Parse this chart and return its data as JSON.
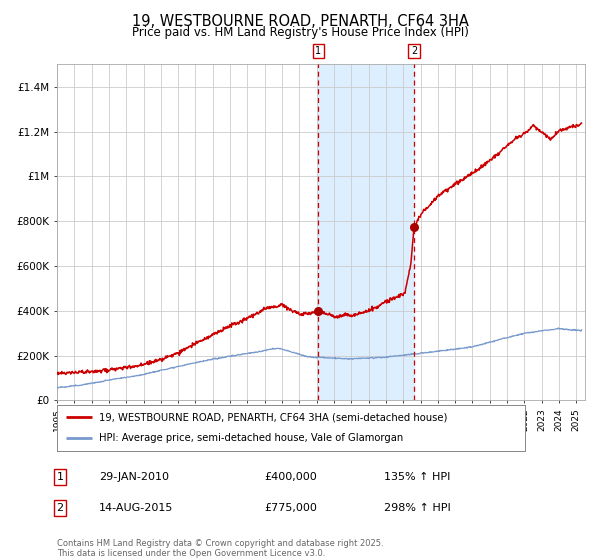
{
  "title": "19, WESTBOURNE ROAD, PENARTH, CF64 3HA",
  "subtitle": "Price paid vs. HM Land Registry's House Price Index (HPI)",
  "title_fontsize": 10.5,
  "subtitle_fontsize": 8.5,
  "background_color": "#ffffff",
  "plot_bg_color": "#ffffff",
  "grid_color": "#cccccc",
  "red_line_color": "#cc0000",
  "blue_line_color": "#7799cc",
  "shade_color": "#ddeeff",
  "dashed_color": "#cc0000",
  "marker_color": "#aa0000",
  "legend_label_red": "19, WESTBOURNE ROAD, PENARTH, CF64 3HA (semi-detached house)",
  "legend_label_blue": "HPI: Average price, semi-detached house, Vale of Glamorgan",
  "annotation1_date": "29-JAN-2010",
  "annotation1_price": "£400,000",
  "annotation1_pct": "135% ↑ HPI",
  "annotation2_date": "14-AUG-2015",
  "annotation2_price": "£775,000",
  "annotation2_pct": "298% ↑ HPI",
  "footer": "Contains HM Land Registry data © Crown copyright and database right 2025.\nThis data is licensed under the Open Government Licence v3.0.",
  "ylim": [
    0,
    1500000
  ],
  "yticks": [
    0,
    200000,
    400000,
    600000,
    800000,
    1000000,
    1200000,
    1400000
  ],
  "ytick_labels": [
    "£0",
    "£200K",
    "£400K",
    "£600K",
    "£800K",
    "£1M",
    "£1.2M",
    "£1.4M"
  ],
  "event1_x": 2010.08,
  "event1_y": 400000,
  "event2_x": 2015.62,
  "event2_y": 775000,
  "shade_x1": 2010.08,
  "shade_x2": 2015.62,
  "xmin": 1995,
  "xmax": 2025.5
}
